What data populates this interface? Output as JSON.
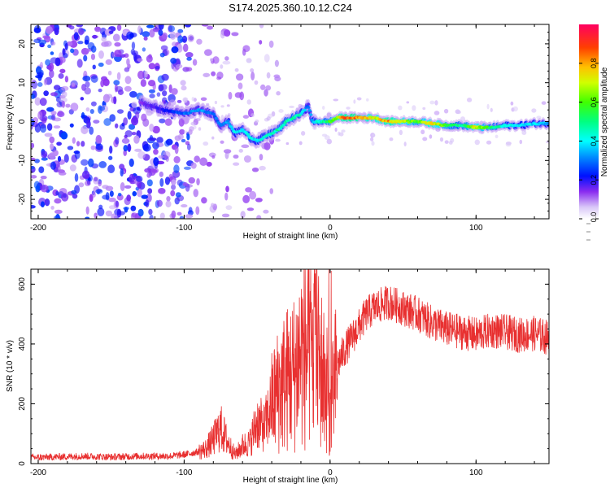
{
  "title": "S174.2025.360.10.12.C24",
  "chart_data": [
    {
      "type": "heatmap",
      "name": "spectrogram",
      "xlabel": "Height of straight line (km)",
      "ylabel": "Frequency (Hz)",
      "xlim": [
        -205,
        150
      ],
      "ylim": [
        -25,
        25
      ],
      "xticks": [
        -200,
        -100,
        0,
        100
      ],
      "yticks": [
        -20,
        -10,
        0,
        10,
        20
      ],
      "colorbar": {
        "label": "Normalized spectral amplitude",
        "range": [
          0.0,
          1.0
        ],
        "ticks": [
          0.0,
          0.2,
          0.4,
          0.6,
          0.8
        ],
        "tick_labels": [
          "0.0",
          "0.2",
          "0.4",
          "0.6",
          "0.8"
        ]
      },
      "ridge": {
        "height_km": [
          -130,
          -115,
          -100,
          -90,
          -80,
          -75,
          -70,
          -65,
          -60,
          -55,
          -50,
          -45,
          -40,
          -35,
          -30,
          -25,
          -20,
          -15,
          -12,
          -8,
          -5,
          0,
          5,
          10,
          15,
          20,
          30,
          40,
          50,
          60,
          70,
          80,
          90,
          100,
          110,
          120,
          130,
          140,
          150
        ],
        "frequency_hz": [
          5,
          3,
          2,
          3,
          2,
          -1,
          0,
          -3,
          -2,
          -4,
          -5,
          -4,
          -3,
          -2,
          0,
          1,
          2,
          4,
          0,
          0,
          0,
          0,
          1,
          1,
          1,
          1,
          1,
          0,
          0,
          0,
          -0.5,
          -1,
          -1,
          -1.5,
          -1.5,
          -1,
          -1,
          -0.5,
          -0.5
        ],
        "amplitude": [
          0.15,
          0.2,
          0.3,
          0.35,
          0.3,
          0.3,
          0.35,
          0.4,
          0.4,
          0.45,
          0.4,
          0.45,
          0.45,
          0.5,
          0.5,
          0.5,
          0.45,
          0.3,
          0.4,
          0.45,
          0.5,
          0.6,
          0.75,
          0.85,
          0.9,
          0.85,
          0.75,
          0.85,
          0.75,
          0.6,
          0.8,
          0.6,
          0.5,
          0.75,
          0.55,
          0.45,
          0.4,
          0.4,
          0.35
        ]
      },
      "noise_region_km": [
        -205,
        -95
      ]
    },
    {
      "type": "line",
      "name": "snr",
      "xlabel": "Height of straight line (km)",
      "ylabel": "SNR (10 * v/v)",
      "xlim": [
        -205,
        150
      ],
      "ylim": [
        0,
        650
      ],
      "xticks": [
        -200,
        -100,
        0,
        100
      ],
      "yticks": [
        0,
        200,
        400,
        600
      ],
      "color": "#e83030",
      "x": [
        -205,
        -190,
        -170,
        -150,
        -130,
        -110,
        -100,
        -90,
        -85,
        -80,
        -75,
        -70,
        -65,
        -60,
        -55,
        -50,
        -45,
        -40,
        -35,
        -30,
        -25,
        -20,
        -15,
        -10,
        -5,
        -2,
        0,
        5,
        10,
        15,
        20,
        25,
        30,
        35,
        40,
        45,
        50,
        60,
        70,
        80,
        90,
        100,
        110,
        120,
        130,
        140,
        150
      ],
      "y": [
        20,
        22,
        25,
        22,
        25,
        25,
        30,
        40,
        50,
        80,
        120,
        70,
        30,
        60,
        70,
        140,
        120,
        200,
        250,
        280,
        300,
        370,
        360,
        380,
        300,
        250,
        150,
        330,
        380,
        420,
        460,
        500,
        520,
        530,
        540,
        530,
        520,
        500,
        470,
        450,
        440,
        430,
        445,
        440,
        430,
        435,
        420
      ]
    }
  ]
}
